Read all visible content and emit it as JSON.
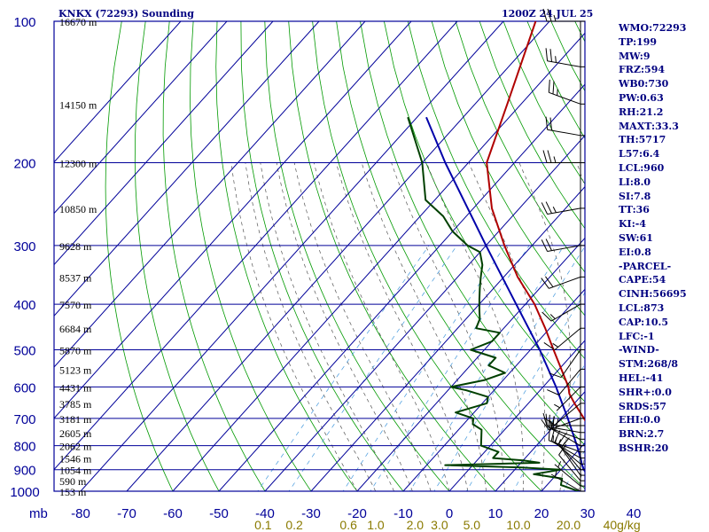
{
  "header": {
    "station": "KNKX (72293) Sounding",
    "valid_time": "1200Z 24 JUL 25"
  },
  "stats": [
    "WMO:72293",
    "TP:199",
    "MW:9",
    "FRZ:594",
    "WB0:730",
    "PW:0.63",
    "RH:21.2",
    "MAXT:33.3",
    "TH:5717",
    "L57:6.4",
    "LCL:960",
    "LI:8.0",
    "SI:7.8",
    "TT:36",
    "KI:-4",
    "SW:61",
    "EI:0.8",
    "-PARCEL-",
    "CAPE:54",
    "CINH:56695",
    "LCL:873",
    "CAP:10.5",
    "LFC:-1",
    "-WIND-",
    "STM:268/8",
    "HEL:-41",
    "SHR+:0.0",
    "SRDS:57",
    "EHI:0.0",
    "BRN:2.7",
    "BSHR:20"
  ],
  "colors": {
    "frame": "#000099",
    "temperature": "#b00000",
    "dewpoint": "#004000",
    "parcel": "#0000aa",
    "dry_adiabat": "#009900",
    "moist_adiabat": "#555555",
    "mixing_ratio": "#4499dd",
    "axis_text": "#000099",
    "mix_text": "#8a7a00"
  },
  "chart_data": {
    "type": "skew-t log-p sounding",
    "pressure_axis": {
      "label": "mb",
      "ticks": [
        100,
        200,
        300,
        400,
        500,
        600,
        700,
        800,
        900,
        1000
      ],
      "range": [
        1000,
        100
      ],
      "scale": "log"
    },
    "temperature_axis": {
      "ticks": [
        "-80",
        "-70",
        "-60",
        "-50",
        "-40",
        "-30",
        "-20",
        "-10",
        "0",
        "10",
        "20",
        "30",
        "40"
      ],
      "values": [
        -80,
        -70,
        -60,
        -50,
        -40,
        -30,
        -20,
        -10,
        0,
        10,
        20,
        30,
        40
      ],
      "unit": "C"
    },
    "mixing_ratio_labels": [
      "0.1",
      "0.2",
      "0.6",
      "1.0",
      "2.0",
      "3.0",
      "5.0",
      "10.0",
      "20.0",
      "40g/kg"
    ],
    "mixing_ratio_values": [
      0.1,
      0.2,
      0.6,
      1.0,
      2.0,
      3.0,
      5.0,
      10.0,
      20.0,
      40.0
    ],
    "height_labels": [
      {
        "p": 1000,
        "text": "153 m"
      },
      {
        "p": 950,
        "text": "590 m"
      },
      {
        "p": 900,
        "text": "1054 m"
      },
      {
        "p": 850,
        "text": "1546 m"
      },
      {
        "p": 800,
        "text": "2062 m"
      },
      {
        "p": 750,
        "text": "2605 m"
      },
      {
        "p": 700,
        "text": "3181 m"
      },
      {
        "p": 650,
        "text": "3785 m"
      },
      {
        "p": 600,
        "text": "4431 m"
      },
      {
        "p": 550,
        "text": "5123 m"
      },
      {
        "p": 500,
        "text": "5870 m"
      },
      {
        "p": 450,
        "text": "6684 m"
      },
      {
        "p": 400,
        "text": "7570 m"
      },
      {
        "p": 350,
        "text": "8537 m"
      },
      {
        "p": 300,
        "text": "9628 m"
      },
      {
        "p": 250,
        "text": "10850 m"
      },
      {
        "p": 200,
        "text": "12300 m"
      },
      {
        "p": 150,
        "text": "14150 m"
      },
      {
        "p": 100,
        "text": "16670 m"
      }
    ],
    "temperature": [
      [
        1000,
        31
      ],
      [
        970,
        30.3
      ],
      [
        925,
        31
      ],
      [
        900,
        30.5
      ],
      [
        870,
        29.5
      ],
      [
        850,
        28
      ],
      [
        800,
        24
      ],
      [
        700,
        15
      ],
      [
        650,
        10
      ],
      [
        620,
        7
      ],
      [
        600,
        5.5
      ],
      [
        500,
        -5
      ],
      [
        450,
        -11
      ],
      [
        400,
        -18
      ],
      [
        350,
        -27
      ],
      [
        300,
        -36
      ],
      [
        250,
        -46
      ],
      [
        200,
        -56
      ],
      [
        150,
        -63
      ],
      [
        100,
        -73
      ]
    ],
    "dewpoint": [
      [
        1000,
        28
      ],
      [
        970,
        23
      ],
      [
        940,
        22
      ],
      [
        920,
        15
      ],
      [
        900,
        20
      ],
      [
        890,
        11
      ],
      [
        880,
        -6
      ],
      [
        870,
        14
      ],
      [
        860,
        10
      ],
      [
        850,
        3
      ],
      [
        825,
        3
      ],
      [
        800,
        -2
      ],
      [
        740,
        -5
      ],
      [
        720,
        -8
      ],
      [
        700,
        -9
      ],
      [
        680,
        -14
      ],
      [
        650,
        -9
      ],
      [
        630,
        -10
      ],
      [
        610,
        -16
      ],
      [
        600,
        -20
      ],
      [
        580,
        -14
      ],
      [
        560,
        -11
      ],
      [
        540,
        -16
      ],
      [
        520,
        -16
      ],
      [
        500,
        -23
      ],
      [
        480,
        -20
      ],
      [
        460,
        -20
      ],
      [
        450,
        -26
      ],
      [
        430,
        -27
      ],
      [
        420,
        -28
      ],
      [
        410,
        -29
      ],
      [
        390,
        -31
      ],
      [
        370,
        -33
      ],
      [
        350,
        -35
      ],
      [
        330,
        -37
      ],
      [
        310,
        -40
      ],
      [
        300,
        -44
      ],
      [
        280,
        -50
      ],
      [
        260,
        -55
      ],
      [
        240,
        -62
      ],
      [
        200,
        -70
      ],
      [
        160,
        -82
      ]
    ],
    "parcel": [
      [
        1000,
        33
      ],
      [
        960,
        29.5
      ],
      [
        900,
        25
      ],
      [
        873,
        23.3
      ],
      [
        850,
        22
      ],
      [
        800,
        18.8
      ],
      [
        700,
        11.5
      ],
      [
        600,
        2.8
      ],
      [
        500,
        -8
      ],
      [
        400,
        -22
      ],
      [
        300,
        -40
      ],
      [
        200,
        -65
      ],
      [
        160,
        -78
      ]
    ],
    "winds": [
      {
        "p": 1000,
        "dir": 300,
        "spd": 5
      },
      {
        "p": 975,
        "dir": 310,
        "spd": 5
      },
      {
        "p": 950,
        "dir": 320,
        "spd": 10
      },
      {
        "p": 925,
        "dir": 325,
        "spd": 10
      },
      {
        "p": 900,
        "dir": 320,
        "spd": 15
      },
      {
        "p": 875,
        "dir": 310,
        "spd": 15
      },
      {
        "p": 850,
        "dir": 300,
        "spd": 15
      },
      {
        "p": 825,
        "dir": 290,
        "spd": 15
      },
      {
        "p": 800,
        "dir": 300,
        "spd": 20
      },
      {
        "p": 775,
        "dir": 290,
        "spd": 20
      },
      {
        "p": 750,
        "dir": 280,
        "spd": 15
      },
      {
        "p": 725,
        "dir": 270,
        "spd": 15
      },
      {
        "p": 700,
        "dir": 250,
        "spd": 10
      },
      {
        "p": 650,
        "dir": 230,
        "spd": 10
      },
      {
        "p": 600,
        "dir": 225,
        "spd": 5
      },
      {
        "p": 550,
        "dir": 220,
        "spd": 10
      },
      {
        "p": 500,
        "dir": 215,
        "spd": 10
      },
      {
        "p": 450,
        "dir": 230,
        "spd": 15
      },
      {
        "p": 400,
        "dir": 240,
        "spd": 15
      },
      {
        "p": 350,
        "dir": 250,
        "spd": 20
      },
      {
        "p": 300,
        "dir": 260,
        "spd": 20
      },
      {
        "p": 250,
        "dir": 260,
        "spd": 25
      },
      {
        "p": 200,
        "dir": 270,
        "spd": 25
      },
      {
        "p": 175,
        "dir": 280,
        "spd": 20
      },
      {
        "p": 150,
        "dir": 290,
        "spd": 25
      },
      {
        "p": 125,
        "dir": 280,
        "spd": 25
      },
      {
        "p": 100,
        "dir": 270,
        "spd": 25
      }
    ]
  }
}
